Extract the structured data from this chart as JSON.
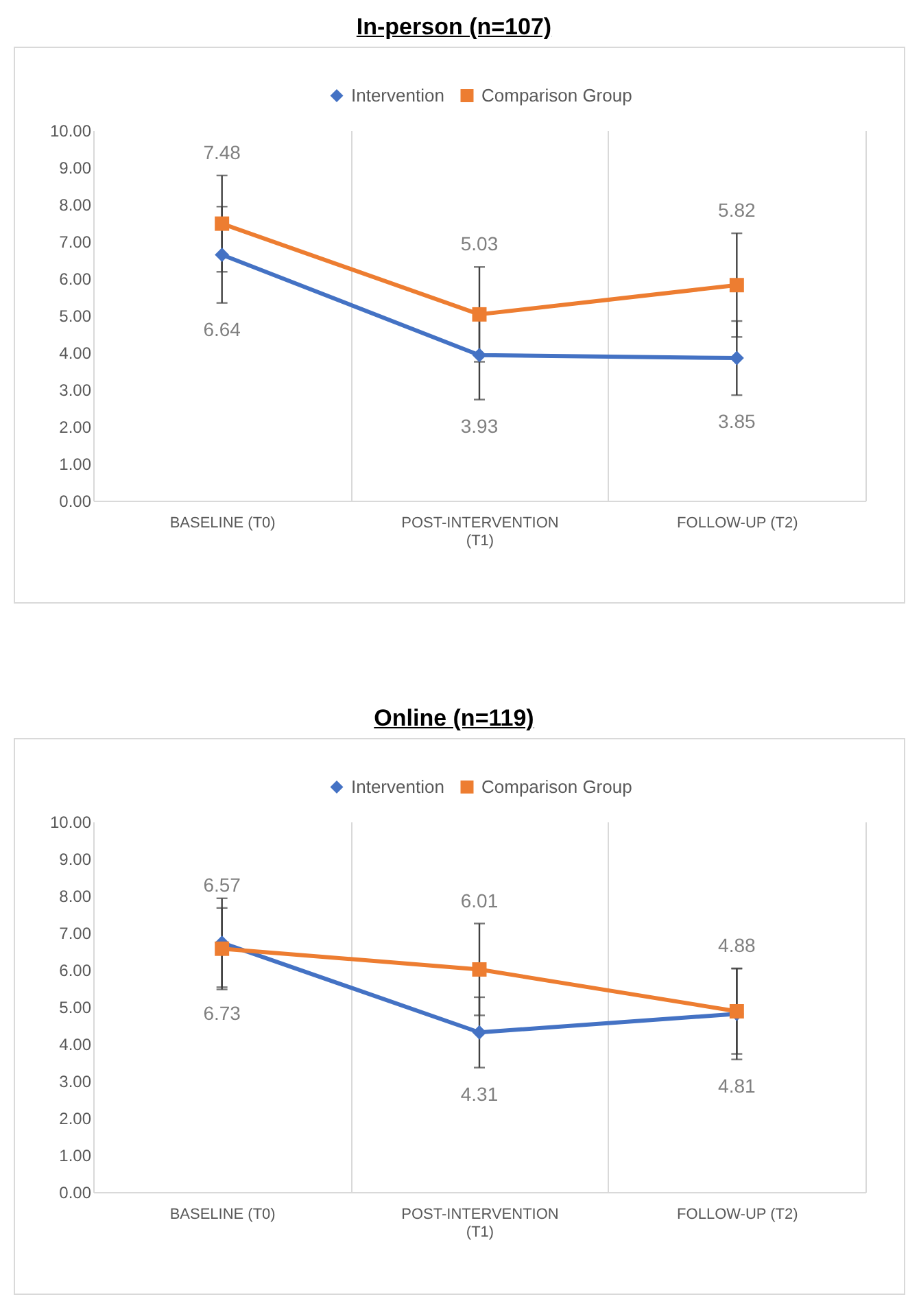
{
  "chart_data": [
    {
      "type": "line",
      "title": "In-person (n=107)",
      "categories": [
        "BASELINE (T0)",
        "POST-INTERVENTION (T1)",
        "FOLLOW-UP (T2)"
      ],
      "series": [
        {
          "name": "Intervention",
          "color": "#4472c4",
          "marker": "diamond",
          "values": [
            6.64,
            3.93,
            3.85
          ],
          "errors": [
            1.3,
            1.2,
            1.0
          ]
        },
        {
          "name": "Comparison Group",
          "color": "#ed7d31",
          "marker": "square",
          "values": [
            7.48,
            5.03,
            5.82
          ],
          "errors": [
            1.3,
            1.28,
            1.4
          ]
        }
      ],
      "ylim": [
        0,
        10
      ],
      "yticks": [
        {
          "value": 0,
          "label": "0.00"
        },
        {
          "value": 1,
          "label": "1.00"
        },
        {
          "value": 2,
          "label": "2.00"
        },
        {
          "value": 3,
          "label": "3.00"
        },
        {
          "value": 4,
          "label": "4.00"
        },
        {
          "value": 5,
          "label": "5.00"
        },
        {
          "value": 6,
          "label": "6.00"
        },
        {
          "value": 7,
          "label": "7.00"
        },
        {
          "value": 8,
          "label": "8.00"
        },
        {
          "value": 9,
          "label": "9.00"
        },
        {
          "value": 10,
          "label": "10.00"
        }
      ],
      "grid": "x",
      "legend": "top",
      "data_labels": true
    },
    {
      "type": "line",
      "title": "Online (n=119)",
      "categories": [
        "BASELINE (T0)",
        "POST-INTERVENTION (T1)",
        "FOLLOW-UP (T2)"
      ],
      "series": [
        {
          "name": "Intervention",
          "color": "#4472c4",
          "marker": "diamond",
          "values": [
            6.73,
            4.31,
            4.81
          ],
          "errors": [
            1.2,
            0.95,
            1.23
          ]
        },
        {
          "name": "Comparison Group",
          "color": "#ed7d31",
          "marker": "square",
          "values": [
            6.57,
            6.01,
            4.88
          ],
          "errors": [
            1.1,
            1.24,
            1.15
          ]
        }
      ],
      "ylim": [
        0,
        10
      ],
      "yticks": [
        {
          "value": 0,
          "label": "0.00"
        },
        {
          "value": 1,
          "label": "1.00"
        },
        {
          "value": 2,
          "label": "2.00"
        },
        {
          "value": 3,
          "label": "3.00"
        },
        {
          "value": 4,
          "label": "4.00"
        },
        {
          "value": 5,
          "label": "5.00"
        },
        {
          "value": 6,
          "label": "6.00"
        },
        {
          "value": 7,
          "label": "7.00"
        },
        {
          "value": 8,
          "label": "8.00"
        },
        {
          "value": 9,
          "label": "9.00"
        },
        {
          "value": 10,
          "label": "10.00"
        }
      ],
      "grid": "x",
      "legend": "top",
      "data_labels": true
    }
  ]
}
